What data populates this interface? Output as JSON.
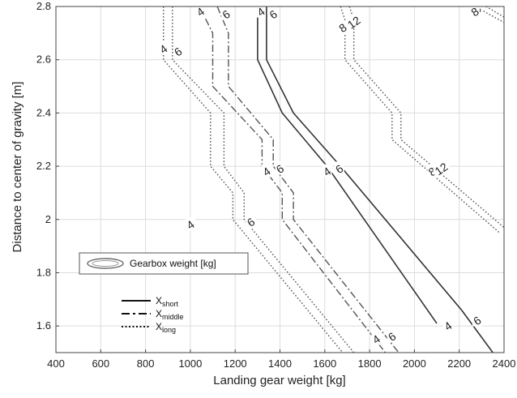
{
  "chart_data": {
    "type": "line",
    "xlabel": "Landing gear weight [kg]",
    "ylabel": "Distance to center of gravity [m]",
    "xlim": [
      400,
      2400
    ],
    "ylim": [
      1.5,
      2.8
    ],
    "xticks": [
      400,
      600,
      800,
      1000,
      1200,
      1400,
      1600,
      1800,
      2000,
      2200,
      2400
    ],
    "yticks": [
      1.6,
      1.8,
      2,
      2.2,
      2.4,
      2.6,
      2.8
    ],
    "xtick_labels": [
      "400",
      "600",
      "800",
      "1000",
      "1200",
      "1400",
      "1600",
      "1800",
      "2000",
      "2200",
      "2400"
    ],
    "ytick_labels": [
      "1.6",
      "1.8",
      "2",
      "2.2",
      "2.4",
      "2.6",
      "2.8"
    ],
    "grid": true,
    "legend_box": {
      "label": "Gearbox weight [kg]",
      "placement": "middle-left"
    },
    "style_legend": [
      {
        "style": "solid",
        "label": "X",
        "sub": "short"
      },
      {
        "style": "dashdot",
        "label": "X",
        "sub": "middle"
      },
      {
        "style": "dotted",
        "label": "X",
        "sub": "long"
      }
    ],
    "series": [
      {
        "style": "solid",
        "level": "4",
        "points": [
          [
            1300,
            2.8
          ],
          [
            1300,
            2.6
          ],
          [
            1410,
            2.4
          ],
          [
            1410,
            2.4
          ],
          [
            1610,
            2.2
          ],
          [
            1610,
            2.2
          ],
          [
            2100,
            1.61
          ],
          [
            2100,
            1.61
          ]
        ]
      },
      {
        "style": "solid",
        "level": "6",
        "points": [
          [
            1340,
            2.8
          ],
          [
            1340,
            2.6
          ],
          [
            1460,
            2.4
          ],
          [
            1460,
            2.4
          ],
          [
            1670,
            2.2
          ],
          [
            1670,
            2.2
          ],
          [
            2210,
            1.66
          ],
          [
            2350,
            1.5
          ]
        ]
      },
      {
        "style": "dashdot",
        "level": "4",
        "points": [
          [
            1040,
            2.8
          ],
          [
            1100,
            2.7
          ],
          [
            1100,
            2.5
          ],
          [
            1320,
            2.3
          ],
          [
            1320,
            2.2
          ],
          [
            1410,
            2.1
          ],
          [
            1410,
            2.0
          ],
          [
            1870,
            1.5
          ]
        ]
      },
      {
        "style": "dashdot",
        "level": "6",
        "points": [
          [
            1120,
            2.8
          ],
          [
            1170,
            2.7
          ],
          [
            1170,
            2.5
          ],
          [
            1370,
            2.3
          ],
          [
            1370,
            2.2
          ],
          [
            1460,
            2.1
          ],
          [
            1460,
            2.0
          ],
          [
            1930,
            1.5
          ]
        ]
      },
      {
        "style": "dotted",
        "level": "4",
        "points": [
          [
            880,
            2.8
          ],
          [
            880,
            2.6
          ],
          [
            1090,
            2.4
          ],
          [
            1090,
            2.2
          ],
          [
            1190,
            2.1
          ],
          [
            1190,
            2.0
          ],
          [
            1680,
            1.5
          ]
        ]
      },
      {
        "style": "dotted",
        "level": "6",
        "points": [
          [
            920,
            2.8
          ],
          [
            920,
            2.6
          ],
          [
            1150,
            2.4
          ],
          [
            1150,
            2.2
          ],
          [
            1240,
            2.1
          ],
          [
            1240,
            2.0
          ],
          [
            1730,
            1.5
          ]
        ]
      },
      {
        "style": "dotted",
        "level": "8",
        "points": [
          [
            1670,
            2.8
          ],
          [
            1690,
            2.75
          ],
          [
            1690,
            2.6
          ],
          [
            1900,
            2.4
          ],
          [
            1900,
            2.3
          ],
          [
            2380,
            1.95
          ]
        ]
      },
      {
        "style": "dotted",
        "level": "12",
        "points": [
          [
            1710,
            2.8
          ],
          [
            1730,
            2.75
          ],
          [
            1730,
            2.6
          ],
          [
            1940,
            2.4
          ],
          [
            1940,
            2.3
          ],
          [
            2400,
            1.97
          ]
        ]
      },
      {
        "style": "dotted",
        "level": "8",
        "points": [
          [
            2270,
            2.8
          ],
          [
            2400,
            2.74
          ]
        ]
      },
      {
        "style": "dotted",
        "level": "12",
        "points": [
          [
            2320,
            2.8
          ],
          [
            2400,
            2.76
          ]
        ]
      }
    ],
    "contour_labels": [
      {
        "text": "4",
        "x": 1045,
        "y": 2.78
      },
      {
        "text": "6",
        "x": 1160,
        "y": 2.77
      },
      {
        "text": "4",
        "x": 1315,
        "y": 2.78
      },
      {
        "text": "6",
        "x": 1370,
        "y": 2.77
      },
      {
        "text": "6",
        "x": 2280,
        "y": 2.79
      },
      {
        "text": "8",
        "x": 2270,
        "y": 2.78
      },
      {
        "text": "8",
        "x": 1680,
        "y": 2.72
      },
      {
        "text": "12",
        "x": 1730,
        "y": 2.74
      },
      {
        "text": "4",
        "x": 880,
        "y": 2.64
      },
      {
        "text": "6",
        "x": 945,
        "y": 2.63
      },
      {
        "text": "4",
        "x": 1340,
        "y": 2.18
      },
      {
        "text": "6",
        "x": 1400,
        "y": 2.19
      },
      {
        "text": "4",
        "x": 1610,
        "y": 2.18
      },
      {
        "text": "6",
        "x": 1665,
        "y": 2.19
      },
      {
        "text": "8",
        "x": 2080,
        "y": 2.18
      },
      {
        "text": "12",
        "x": 2120,
        "y": 2.19
      },
      {
        "text": "4",
        "x": 1000,
        "y": 1.98
      },
      {
        "text": "6",
        "x": 1270,
        "y": 1.99
      },
      {
        "text": "4",
        "x": 2150,
        "y": 1.6
      },
      {
        "text": "6",
        "x": 2280,
        "y": 1.62
      },
      {
        "text": "4",
        "x": 1830,
        "y": 1.55
      },
      {
        "text": "6",
        "x": 1900,
        "y": 1.56
      }
    ]
  }
}
